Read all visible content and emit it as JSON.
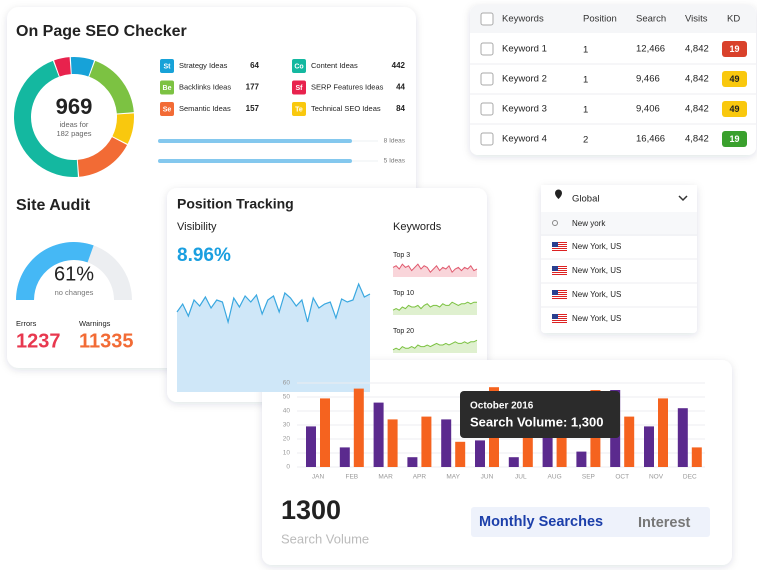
{
  "seo_checker": {
    "title": "On Page SEO Checker",
    "total": 969,
    "caption": [
      "ideas for",
      "182 pages"
    ],
    "items": [
      {
        "code": "St",
        "label": "Strategy Ideas",
        "value": 64,
        "color": "#17a2d8"
      },
      {
        "code": "Be",
        "label": "Backlinks Ideas",
        "value": 177,
        "color": "#7cc242"
      },
      {
        "code": "Se",
        "label": "Semantic Ideas",
        "value": 157,
        "color": "#f26b35"
      },
      {
        "code": "Co",
        "label": "Content Ideas",
        "value": 442,
        "color": "#14b8a0"
      },
      {
        "code": "Sf",
        "label": "SERP Features Ideas",
        "value": 44,
        "color": "#e8224d"
      },
      {
        "code": "Te",
        "label": "Technical SEO Ideas",
        "value": 84,
        "color": "#f9c80e"
      }
    ],
    "bars": [
      "8 Ideas",
      "5 Ideas"
    ]
  },
  "site_audit": {
    "title": "Site Audit",
    "score": {
      "value": 61,
      "label": "61%"
    },
    "caption": "no changes",
    "errors_label": "Errors",
    "errors": 1237,
    "warnings_label": "Warnings",
    "warnings": 11335
  },
  "position_tracking": {
    "title": "Position Tracking",
    "visibility_label": "Visibility",
    "visibility": "8.96%",
    "visibility_series": [
      80,
      88,
      76,
      92,
      86,
      95,
      84,
      92,
      90,
      70,
      94,
      85,
      96,
      90,
      97,
      78,
      92,
      96,
      80,
      99,
      94,
      86,
      92,
      70,
      94,
      84,
      88,
      90,
      74,
      93,
      90,
      92,
      108,
      95,
      98
    ],
    "keywords_label": "Keywords",
    "sparklines": [
      {
        "label": "Top 3",
        "color": "#e05a6e",
        "fill": "#f9d5da",
        "values": [
          6,
          7,
          5,
          8,
          6,
          7,
          4,
          6,
          8,
          5,
          7,
          6,
          3,
          5,
          7,
          4,
          6,
          5,
          7,
          3,
          5,
          6,
          4,
          6,
          5,
          7,
          4,
          5
        ]
      },
      {
        "label": "Top 10",
        "color": "#7cc242",
        "fill": "#dff0cf",
        "values": [
          3,
          4,
          3,
          5,
          4,
          6,
          5,
          5,
          6,
          4,
          6,
          7,
          5,
          6,
          6,
          5,
          7,
          6,
          6,
          8,
          7,
          6,
          7,
          7,
          8,
          7,
          8,
          8
        ]
      },
      {
        "label": "Top 20",
        "color": "#7cc242",
        "fill": "#dff0cf",
        "values": [
          2,
          3,
          2,
          4,
          3,
          3,
          4,
          3,
          5,
          4,
          4,
          5,
          4,
          5,
          6,
          5,
          5,
          6,
          5,
          6,
          7,
          6,
          6,
          7,
          6,
          7,
          7,
          8
        ]
      }
    ]
  },
  "keyword_table": {
    "headers": [
      "Keywords",
      "Position",
      "Search",
      "Visits",
      "KD"
    ],
    "rows": [
      [
        "Keyword 1",
        1,
        "12,466",
        "4,842",
        19
      ],
      [
        "Keyword 2",
        1,
        "9,466",
        "4,842",
        49
      ],
      [
        "Keyword 3",
        1,
        "9,406",
        "4,842",
        49
      ],
      [
        "Keyword 4",
        2,
        "16,466",
        "4,842",
        19
      ]
    ],
    "kd_colors": [
      "#d9412b",
      "#f9c80e",
      "#f9c80e",
      "#3aa02d"
    ]
  },
  "location": {
    "selected": "Global",
    "query": "New york",
    "options": [
      "New York, US",
      "New York, US",
      "New York, US",
      "New York, US"
    ]
  },
  "chart_data": {
    "type": "bar",
    "categories": [
      "JAN",
      "FEB",
      "MAR",
      "APR",
      "MAY",
      "JUN",
      "JUL",
      "AUG",
      "SEP",
      "OCT",
      "NOV",
      "DEC"
    ],
    "series": [
      {
        "color": "#5b2a8e",
        "values": [
          29,
          14,
          46,
          7,
          34,
          19,
          7,
          21,
          11,
          55,
          29,
          42
        ]
      },
      {
        "color": "#f5631f",
        "values": [
          49,
          56,
          34,
          36,
          18,
          57,
          30,
          36,
          55,
          36,
          49,
          14
        ]
      }
    ],
    "ylim": [
      0,
      60
    ],
    "yticks": [
      0,
      10,
      20,
      30,
      40,
      50,
      60
    ],
    "grid": true,
    "tooltip": {
      "title": "October 2016",
      "text": "Search Volume: 1,300"
    },
    "total": 1300,
    "total_label": "Search Volume",
    "tabs": [
      "Monthly Searches",
      "Interest"
    ]
  }
}
